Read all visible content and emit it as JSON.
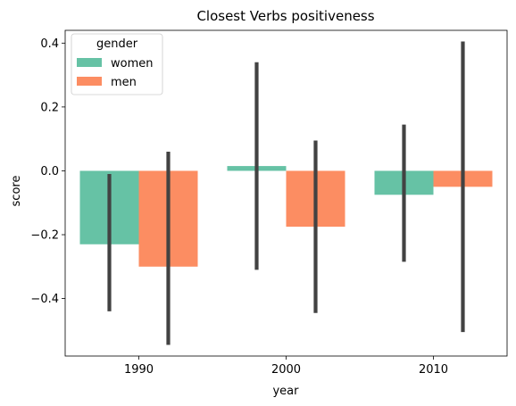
{
  "chart_data": {
    "type": "bar",
    "title": "Closest Verbs positiveness",
    "xlabel": "year",
    "ylabel": "score",
    "categories": [
      "1990",
      "2000",
      "2010"
    ],
    "ylim": [
      -0.58,
      0.44
    ],
    "yticks": [
      -0.4,
      -0.2,
      0.0,
      0.2,
      0.4
    ],
    "ytick_labels": [
      "−0.4",
      "−0.2",
      "0.0",
      "0.2",
      "0.4"
    ],
    "legend": {
      "title": "gender",
      "position": "top-left"
    },
    "grid": false,
    "series": [
      {
        "name": "women",
        "color": "#66c2a5",
        "values": [
          -0.23,
          0.015,
          -0.075
        ],
        "ci_low": [
          -0.44,
          -0.31,
          -0.285
        ],
        "ci_high": [
          -0.01,
          0.34,
          0.145
        ]
      },
      {
        "name": "men",
        "color": "#fc8d62",
        "values": [
          -0.3,
          -0.175,
          -0.05
        ],
        "ci_low": [
          -0.545,
          -0.445,
          -0.505
        ],
        "ci_high": [
          0.06,
          0.095,
          0.405
        ]
      }
    ],
    "errorbar_color": "#424242"
  }
}
